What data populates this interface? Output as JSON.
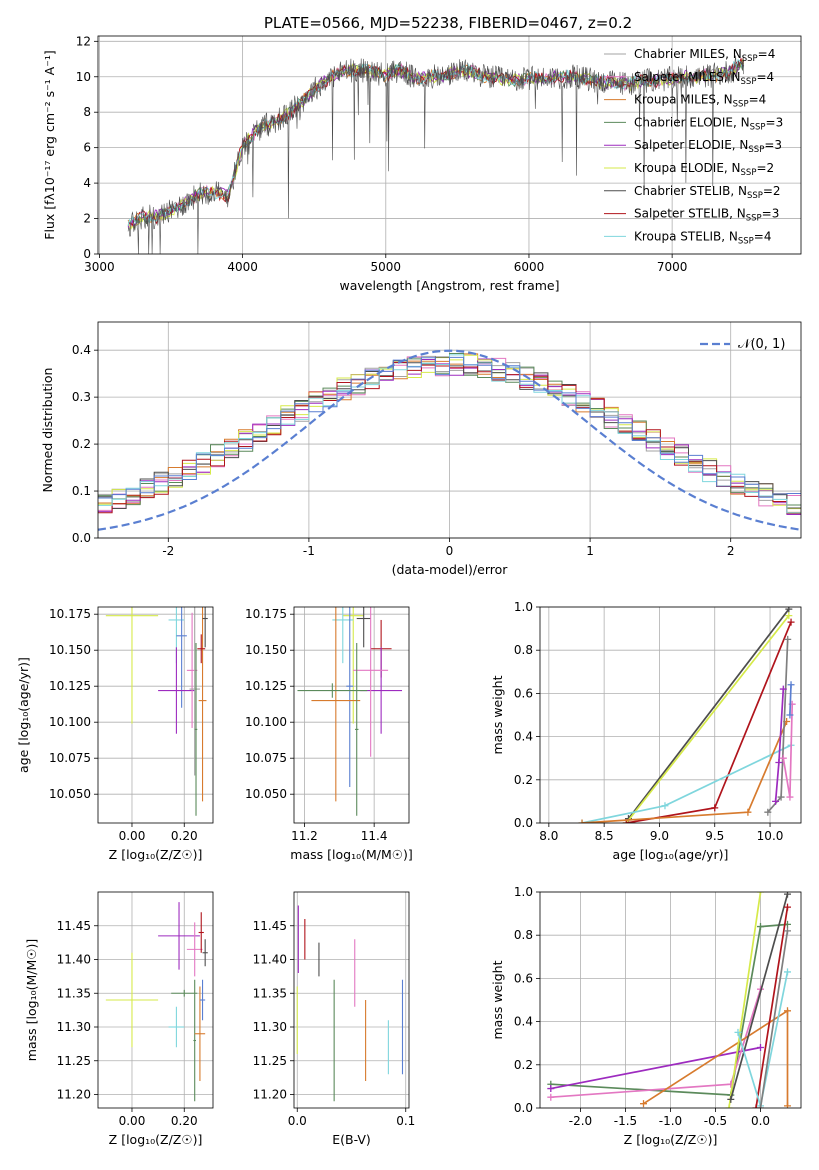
{
  "figure_title": "PLATE=0566, MJD=52238, FIBERID=0467, z=0.2",
  "colors": {
    "chabrier_miles": "#a3a3a3",
    "salpeter_miles": "#e377c2",
    "kroupa_miles": "#d77b2e",
    "chabrier_elodie": "#5b8a5b",
    "salpeter_elodie": "#9d2bbf",
    "kroupa_elodie": "#d6ea4a",
    "chabrier_stelib": "#4d4d4d",
    "salpeter_stelib": "#b0141c",
    "kroupa_stelib": "#7fd6dd",
    "blue": "#5a7fd1",
    "gray": "#7f7f7f"
  },
  "chart_data": [
    {
      "id": "spectrum",
      "type": "line",
      "xlabel": "wavelength [Angstrom, rest frame]",
      "ylabel": "Flux [fλ10⁻¹⁷ erg cm⁻² s⁻¹ A⁻¹]",
      "xlim": [
        2990,
        7900
      ],
      "ylim": [
        0,
        12.3
      ],
      "xticks": [
        3000,
        4000,
        5000,
        6000,
        7000
      ],
      "yticks": [
        0,
        2,
        4,
        6,
        8,
        10,
        12
      ],
      "continuum": [
        [
          3200,
          1.6
        ],
        [
          3300,
          2.1
        ],
        [
          3400,
          2.1
        ],
        [
          3500,
          2.4
        ],
        [
          3600,
          2.9
        ],
        [
          3700,
          3.4
        ],
        [
          3800,
          3.5
        ],
        [
          3900,
          3.3
        ],
        [
          4000,
          6.1
        ],
        [
          4100,
          7.0
        ],
        [
          4200,
          7.4
        ],
        [
          4300,
          7.8
        ],
        [
          4400,
          8.5
        ],
        [
          4500,
          9.3
        ],
        [
          4600,
          9.9
        ],
        [
          4700,
          10.3
        ],
        [
          4800,
          10.4
        ],
        [
          4900,
          10.3
        ],
        [
          5000,
          10.1
        ],
        [
          5100,
          10.4
        ],
        [
          5200,
          9.9
        ],
        [
          5300,
          10.0
        ],
        [
          5400,
          10.0
        ],
        [
          5500,
          10.3
        ],
        [
          5600,
          10.3
        ],
        [
          5700,
          10.0
        ],
        [
          5800,
          9.9
        ],
        [
          5900,
          9.8
        ],
        [
          6000,
          9.9
        ],
        [
          6100,
          9.9
        ],
        [
          6200,
          10.0
        ],
        [
          6300,
          10.0
        ],
        [
          6400,
          9.9
        ],
        [
          6500,
          9.7
        ],
        [
          6600,
          9.7
        ],
        [
          6700,
          9.6
        ],
        [
          6800,
          9.8
        ],
        [
          6900,
          9.8
        ],
        [
          7000,
          9.9
        ],
        [
          7100,
          10.0
        ],
        [
          7200,
          10.0
        ],
        [
          7300,
          10.1
        ],
        [
          7400,
          10.3
        ],
        [
          7500,
          10.8
        ]
      ],
      "legend": [
        {
          "label": "Chabrier MILES, N",
          "sub": "SSP",
          "suffix": "=4",
          "color": "#a3a3a3"
        },
        {
          "label": "Salpeter MILES, N",
          "sub": "SSP",
          "suffix": "=4",
          "color": "#e377c2"
        },
        {
          "label": "Kroupa MILES, N",
          "sub": "SSP",
          "suffix": "=4",
          "color": "#d77b2e"
        },
        {
          "label": "Chabrier ELODIE, N",
          "sub": "SSP",
          "suffix": "=3",
          "color": "#5b8a5b"
        },
        {
          "label": "Salpeter ELODIE, N",
          "sub": "SSP",
          "suffix": "=3",
          "color": "#9d2bbf"
        },
        {
          "label": "Kroupa ELODIE, N",
          "sub": "SSP",
          "suffix": "=2",
          "color": "#d6ea4a"
        },
        {
          "label": "Chabrier STELIB, N",
          "sub": "SSP",
          "suffix": "=2",
          "color": "#4d4d4d"
        },
        {
          "label": "Salpeter STELIB, N",
          "sub": "SSP",
          "suffix": "=3",
          "color": "#b0141c"
        },
        {
          "label": "Kroupa STELIB, N",
          "sub": "SSP",
          "suffix": "=4",
          "color": "#7fd6dd"
        }
      ]
    },
    {
      "id": "residuals",
      "type": "histogram",
      "xlabel": "(data-model)/error",
      "ylabel": "Normed distribution",
      "xlim": [
        -2.5,
        2.5
      ],
      "ylim": [
        0,
        0.46
      ],
      "xticks": [
        -2,
        -1,
        0,
        1,
        2
      ],
      "yticks": [
        0.0,
        0.1,
        0.2,
        0.3,
        0.4
      ],
      "bin_width": 0.1,
      "legend_label": "𝒩(0, 1)",
      "grid": true
    },
    {
      "id": "age_vs_Z",
      "type": "errorbar",
      "xlabel": "Z [log₁₀(Z/Z☉)]",
      "ylabel": "age  [log₁₀(age/yr)]",
      "xlim": [
        -0.13,
        0.31
      ],
      "ylim": [
        10.03,
        10.18
      ],
      "xticks": [
        0.0,
        0.2
      ],
      "yticks": [
        10.05,
        10.075,
        10.1,
        10.125,
        10.15,
        10.175
      ],
      "points": [
        {
          "x": 0.0,
          "xerr": 0.1,
          "y": 10.174,
          "yerr": 0.075,
          "color": "#d6ea4a"
        },
        {
          "x": 0.17,
          "xerr": 0.03,
          "y": 10.171,
          "yerr": 0.03,
          "color": "#7fd6dd"
        },
        {
          "x": 0.19,
          "xerr": 0.02,
          "y": 10.16,
          "yerr": 0.05,
          "color": "#5a7fd1"
        },
        {
          "x": 0.17,
          "xerr": 0.07,
          "y": 10.122,
          "yerr": 0.03,
          "color": "#9d2bbf"
        },
        {
          "x": 0.23,
          "xerr": 0.02,
          "y": 10.136,
          "yerr": 0.04,
          "color": "#e377c2"
        },
        {
          "x": 0.24,
          "xerr": 0.02,
          "y": 10.123,
          "yerr": 0.06,
          "color": "#a3a3a3"
        },
        {
          "x": 0.245,
          "xerr": 0.005,
          "y": 10.095,
          "yerr": 0.06,
          "color": "#5b8a5b"
        },
        {
          "x": 0.27,
          "xerr": 0.015,
          "y": 10.115,
          "yerr": 0.07,
          "color": "#d77b2e"
        },
        {
          "x": 0.265,
          "xerr": 0.015,
          "y": 10.151,
          "yerr": 0.01,
          "color": "#b0141c"
        },
        {
          "x": 0.28,
          "xerr": 0.01,
          "y": 10.172,
          "yerr": 0.02,
          "color": "#4d4d4d"
        }
      ]
    },
    {
      "id": "age_vs_mass",
      "type": "errorbar",
      "xlabel": "mass [log₁₀(M/M☉)]",
      "ylabel": "",
      "xlim": [
        11.17,
        11.5
      ],
      "ylim": [
        10.03,
        10.18
      ],
      "xticks": [
        11.2,
        11.4
      ],
      "yticks": [
        10.05,
        10.075,
        10.1,
        10.125,
        10.15,
        10.175
      ],
      "points": [
        {
          "x": 11.34,
          "xerr": 0.03,
          "y": 10.174,
          "yerr": 0.075,
          "color": "#d6ea4a"
        },
        {
          "x": 11.31,
          "xerr": 0.03,
          "y": 10.171,
          "yerr": 0.03,
          "color": "#7fd6dd"
        },
        {
          "x": 11.37,
          "xerr": 0.02,
          "y": 10.172,
          "yerr": 0.02,
          "color": "#4d4d4d"
        },
        {
          "x": 11.42,
          "xerr": 0.03,
          "y": 10.151,
          "yerr": 0.02,
          "color": "#b0141c"
        },
        {
          "x": 11.42,
          "xerr": 0.06,
          "y": 10.122,
          "yerr": 0.03,
          "color": "#9d2bbf"
        },
        {
          "x": 11.39,
          "xerr": 0.05,
          "y": 10.136,
          "yerr": 0.06,
          "color": "#e377c2"
        },
        {
          "x": 11.33,
          "xerr": 0.01,
          "y": 10.125,
          "yerr": 0.07,
          "color": "#5a7fd1"
        },
        {
          "x": 11.29,
          "xerr": 0.07,
          "y": 10.115,
          "yerr": 0.07,
          "color": "#d77b2e"
        },
        {
          "x": 11.28,
          "xerr": 0.1,
          "y": 10.122,
          "yerr": 0.005,
          "color": "#5b8a5b"
        },
        {
          "x": 11.35,
          "xerr": 0.005,
          "y": 10.095,
          "yerr": 0.06,
          "color": "#5b8a5b"
        }
      ]
    },
    {
      "id": "massweight_vs_age",
      "type": "line",
      "xlabel": "age  [log₁₀(age/yr)]",
      "ylabel": "mass weight",
      "xlim": [
        7.92,
        10.28
      ],
      "ylim": [
        0,
        1
      ],
      "xticks": [
        8.0,
        8.5,
        9.0,
        9.5,
        10.0
      ],
      "yticks": [
        0.0,
        0.2,
        0.4,
        0.6,
        0.8,
        1.0
      ],
      "series": [
        {
          "color": "#4d4d4d",
          "x": [
            8.72,
            10.17
          ],
          "y": [
            0.02,
            0.99
          ]
        },
        {
          "color": "#d6ea4a",
          "x": [
            8.7,
            10.17
          ],
          "y": [
            0.0,
            0.96
          ]
        },
        {
          "color": "#b0141c",
          "x": [
            8.7,
            9.5,
            10.19
          ],
          "y": [
            0.0,
            0.07,
            0.93
          ]
        },
        {
          "color": "#7fd6dd",
          "x": [
            8.3,
            9.05,
            10.19
          ],
          "y": [
            0.0,
            0.08,
            0.36
          ]
        },
        {
          "color": "#d77b2e",
          "x": [
            8.3,
            9.8,
            10.15
          ],
          "y": [
            0.0,
            0.05,
            0.47
          ]
        },
        {
          "color": "#7f7f7f",
          "x": [
            9.98,
            10.1,
            10.16
          ],
          "y": [
            0.05,
            0.12,
            0.85
          ]
        },
        {
          "color": "#9d2bbf",
          "x": [
            10.05,
            10.08,
            10.12
          ],
          "y": [
            0.1,
            0.28,
            0.62
          ]
        },
        {
          "color": "#e377c2",
          "x": [
            10.12,
            10.18,
            10.2
          ],
          "y": [
            0.3,
            0.12,
            0.55
          ]
        },
        {
          "color": "#5a7fd1",
          "x": [
            10.18,
            10.19
          ],
          "y": [
            0.5,
            0.64
          ]
        }
      ]
    },
    {
      "id": "mass_vs_Z",
      "type": "errorbar",
      "xlabel": "Z [log₁₀(Z/Z☉)]",
      "ylabel": "mass [log₁₀(M/M☉)]",
      "xlim": [
        -0.13,
        0.31
      ],
      "ylim": [
        11.18,
        11.5
      ],
      "xticks": [
        0.0,
        0.2
      ],
      "yticks": [
        11.2,
        11.25,
        11.3,
        11.35,
        11.4,
        11.45
      ],
      "points": [
        {
          "x": 0.0,
          "xerr": 0.1,
          "y": 11.34,
          "yerr": 0.07,
          "color": "#d6ea4a"
        },
        {
          "x": 0.17,
          "xerr": 0.03,
          "y": 11.3,
          "yerr": 0.03,
          "color": "#7fd6dd"
        },
        {
          "x": 0.18,
          "xerr": 0.08,
          "y": 11.435,
          "yerr": 0.05,
          "color": "#9d2bbf"
        },
        {
          "x": 0.2,
          "xerr": 0.05,
          "y": 11.35,
          "yerr": 0.005,
          "color": "#5b8a5b"
        },
        {
          "x": 0.24,
          "xerr": 0.005,
          "y": 11.28,
          "yerr": 0.09,
          "color": "#5b8a5b"
        },
        {
          "x": 0.24,
          "xerr": 0.03,
          "y": 11.415,
          "yerr": 0.04,
          "color": "#e377c2"
        },
        {
          "x": 0.265,
          "xerr": 0.01,
          "y": 11.44,
          "yerr": 0.03,
          "color": "#b0141c"
        },
        {
          "x": 0.26,
          "xerr": 0.02,
          "y": 11.29,
          "yerr": 0.07,
          "color": "#d77b2e"
        },
        {
          "x": 0.27,
          "xerr": 0.01,
          "y": 11.34,
          "yerr": 0.03,
          "color": "#5a7fd1"
        },
        {
          "x": 0.28,
          "xerr": 0.01,
          "y": 11.41,
          "yerr": 0.02,
          "color": "#4d4d4d"
        }
      ]
    },
    {
      "id": "mass_vs_ebv",
      "type": "errorbar",
      "xlabel": "E(B-V)",
      "ylabel": "",
      "xlim": [
        -0.003,
        0.103
      ],
      "ylim": [
        11.18,
        11.5
      ],
      "xticks": [
        0.0,
        0.1
      ],
      "yticks": [
        11.2,
        11.25,
        11.3,
        11.35,
        11.4,
        11.45
      ],
      "points": [
        {
          "x": 0.0,
          "xerr": 0.0,
          "y": 11.31,
          "yerr": 0.05,
          "color": "#d6ea4a"
        },
        {
          "x": 0.001,
          "xerr": 0.0,
          "y": 11.43,
          "yerr": 0.05,
          "color": "#9d2bbf"
        },
        {
          "x": 0.007,
          "xerr": 0.0,
          "y": 11.43,
          "yerr": 0.03,
          "color": "#b0141c"
        },
        {
          "x": 0.02,
          "xerr": 0.0,
          "y": 11.4,
          "yerr": 0.025,
          "color": "#4d4d4d"
        },
        {
          "x": 0.034,
          "xerr": 0.0,
          "y": 11.28,
          "yerr": 0.09,
          "color": "#5b8a5b"
        },
        {
          "x": 0.053,
          "xerr": 0.0,
          "y": 11.38,
          "yerr": 0.05,
          "color": "#e377c2"
        },
        {
          "x": 0.063,
          "xerr": 0.0,
          "y": 11.28,
          "yerr": 0.06,
          "color": "#d77b2e"
        },
        {
          "x": 0.084,
          "xerr": 0.0,
          "y": 11.27,
          "yerr": 0.04,
          "color": "#7fd6dd"
        },
        {
          "x": 0.097,
          "xerr": 0.0,
          "y": 11.3,
          "yerr": 0.07,
          "color": "#5a7fd1"
        }
      ]
    },
    {
      "id": "massweight_vs_Z",
      "type": "line",
      "xlabel": "Z [log₁₀(Z/Z☉)]",
      "ylabel": "mass weight",
      "xlim": [
        -2.45,
        0.45
      ],
      "ylim": [
        0,
        1
      ],
      "xticks": [
        -2.0,
        -1.5,
        -1.0,
        -0.5,
        0.0
      ],
      "yticks": [
        0.0,
        0.2,
        0.4,
        0.6,
        0.8,
        1.0
      ],
      "series": [
        {
          "color": "#5b8a5b",
          "x": [
            -2.33,
            -0.33,
            0.0,
            0.3
          ],
          "y": [
            0.11,
            0.06,
            0.84,
            0.85
          ]
        },
        {
          "color": "#9d2bbf",
          "x": [
            -2.33,
            0.0
          ],
          "y": [
            0.09,
            0.28
          ]
        },
        {
          "color": "#e377c2",
          "x": [
            -2.33,
            -0.33,
            0.0
          ],
          "y": [
            0.05,
            0.11,
            0.55
          ]
        },
        {
          "color": "#d77b2e",
          "x": [
            -1.3,
            0.3,
            0.3
          ],
          "y": [
            0.02,
            0.45,
            0.01
          ]
        },
        {
          "color": "#d6ea4a",
          "x": [
            -0.35,
            0.0
          ],
          "y": [
            0.0,
            1.0
          ]
        },
        {
          "color": "#4d4d4d",
          "x": [
            -0.33,
            0.3
          ],
          "y": [
            0.04,
            0.99
          ]
        },
        {
          "color": "#b0141c",
          "x": [
            -0.05,
            0.3
          ],
          "y": [
            0.0,
            0.93
          ]
        },
        {
          "color": "#7fd6dd",
          "x": [
            -0.25,
            0.0,
            0.3
          ],
          "y": [
            0.35,
            0.01,
            0.63
          ]
        },
        {
          "color": "#7f7f7f",
          "x": [
            0.0,
            0.3
          ],
          "y": [
            0.0,
            0.82
          ]
        }
      ]
    }
  ]
}
